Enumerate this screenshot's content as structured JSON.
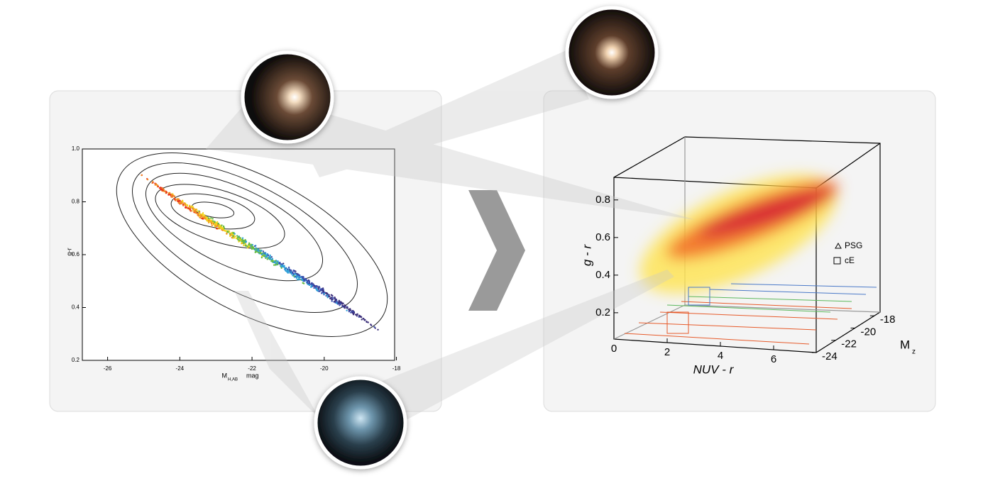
{
  "left_plot": {
    "x_label": "M",
    "x_label_sub": "H,AB",
    "x_label_unit": "mag",
    "y_label": "g-r",
    "xlim": [
      -26.7,
      -18.05
    ],
    "ylim": [
      0.2,
      1.0
    ],
    "xticks": [
      -26,
      -24,
      -22,
      -20,
      -18
    ],
    "yticks": [
      0.2,
      0.4,
      0.6,
      0.8,
      {
        "value": 1.0,
        "label": "1.0"
      }
    ]
  },
  "right_plot": {
    "x_label": "NUV - r",
    "y_label": "g - r",
    "z_label": "M",
    "z_label_sub": "z",
    "xlim": [
      0,
      7.6
    ],
    "ylim": [
      0.06,
      0.92
    ],
    "zlim": [
      -24,
      -17.4
    ],
    "xticks": [
      0,
      2,
      4,
      6
    ],
    "yticks": [
      0.2,
      0.4,
      0.6,
      0.8
    ],
    "zticks": [
      -24,
      -22,
      -20,
      -18
    ],
    "legend": [
      "PSG",
      "cE"
    ]
  }
}
